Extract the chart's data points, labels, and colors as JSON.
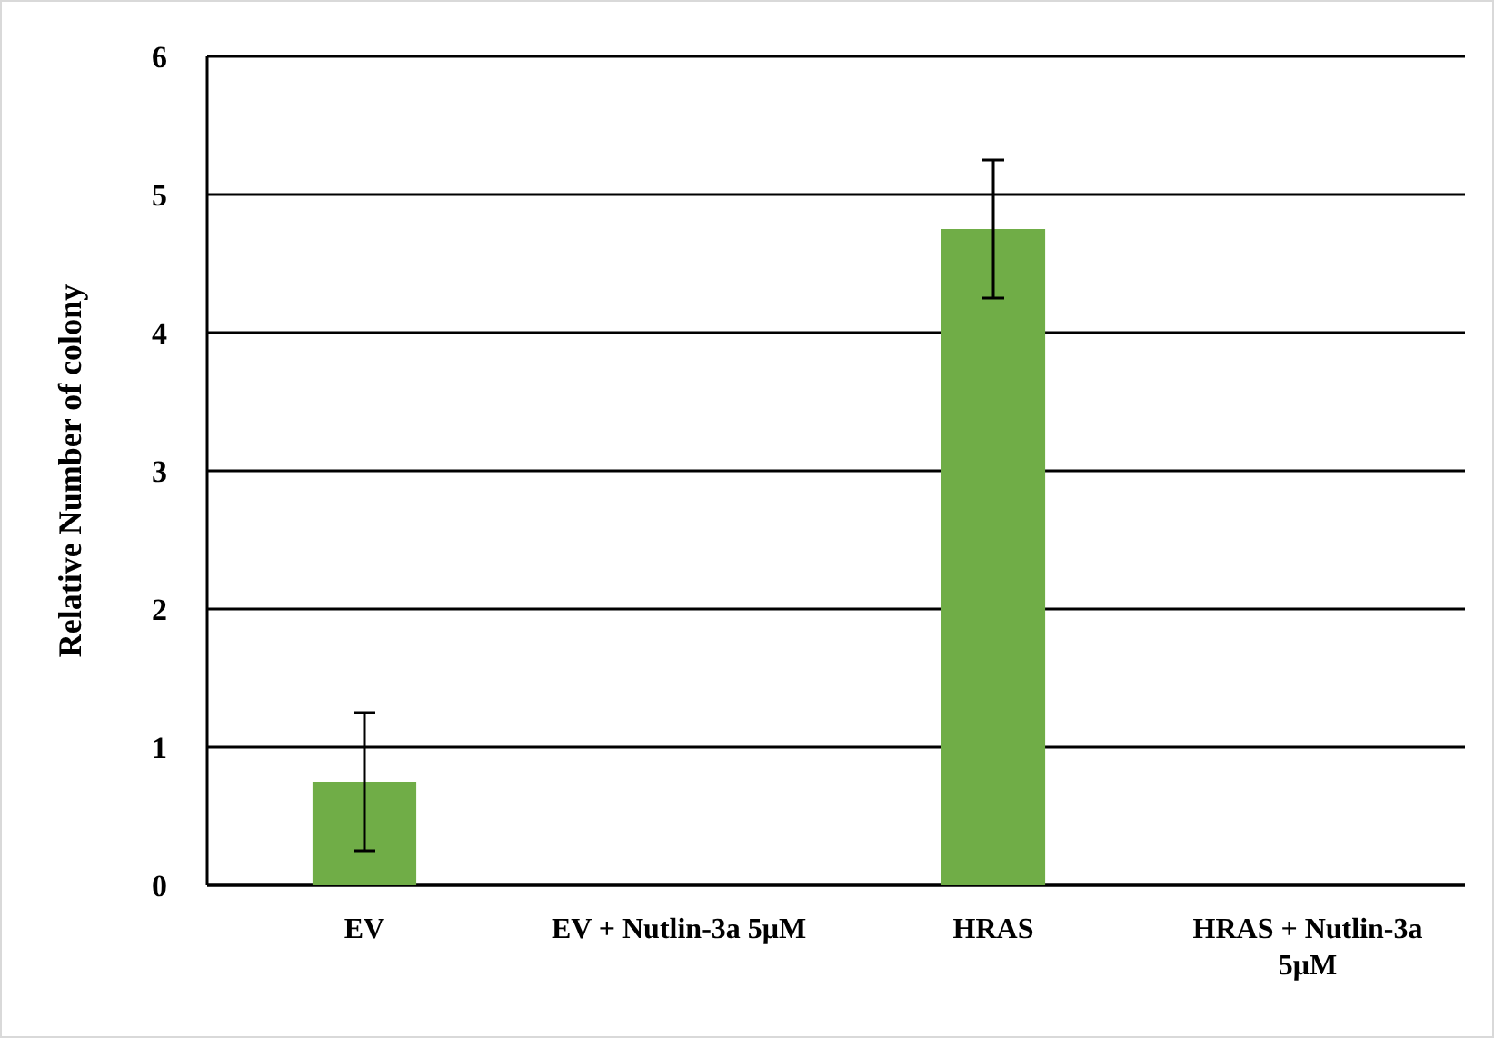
{
  "chart_data": {
    "type": "bar",
    "ylabel": "Relative Number of colony",
    "categories": [
      "EV",
      "EV + Nutlin-3a 5μM",
      "HRAS",
      "HRAS + Nutlin-3a 5μM"
    ],
    "values": [
      0.75,
      0,
      4.75,
      0
    ],
    "errors": [
      0.5,
      null,
      0.5,
      null
    ],
    "color": "#70ad47",
    "ylim": [
      0,
      6
    ],
    "yticks": [
      0,
      1,
      2,
      3,
      4,
      5,
      6
    ],
    "grid": "y"
  }
}
